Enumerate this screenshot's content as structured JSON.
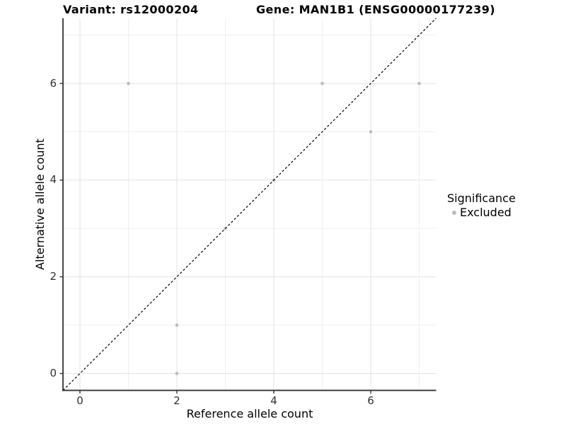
{
  "chart_data": {
    "type": "scatter",
    "title_left": "Variant: rs12000204",
    "title_right": "Gene: MAN1B1 (ENSG00000177239)",
    "xlabel": "Reference allele count",
    "ylabel": "Alternative allele count",
    "xlim": [
      -0.35,
      7.35
    ],
    "ylim": [
      -0.35,
      7.35
    ],
    "x_ticks": [
      0,
      2,
      4,
      6
    ],
    "y_ticks": [
      0,
      2,
      4,
      6
    ],
    "x_minor_gridlines": [
      1,
      3,
      5,
      7
    ],
    "y_minor_gridlines": [
      1,
      3,
      5,
      7
    ],
    "grid": true,
    "series": [
      {
        "name": "Excluded",
        "points": [
          [
            1,
            6
          ],
          [
            5,
            6
          ],
          [
            7,
            6
          ],
          [
            6,
            5
          ],
          [
            4,
            4
          ],
          [
            3,
            3
          ],
          [
            2,
            1
          ],
          [
            2,
            0
          ]
        ]
      }
    ],
    "identity_line": {
      "equation": "y = x",
      "style": "dashed"
    },
    "legend": {
      "title": "Significance",
      "position": "right",
      "items": [
        {
          "label": "Excluded",
          "color": "#BCBCBC"
        }
      ]
    }
  },
  "colors": {
    "point": "#BCBCBC",
    "grid_major": "#E3E3E3",
    "grid_minor": "#F0F0F0",
    "axis_line": "#333333",
    "tick_mark": "#333333",
    "dashed_line": "#000000",
    "background": "#FFFFFF"
  }
}
